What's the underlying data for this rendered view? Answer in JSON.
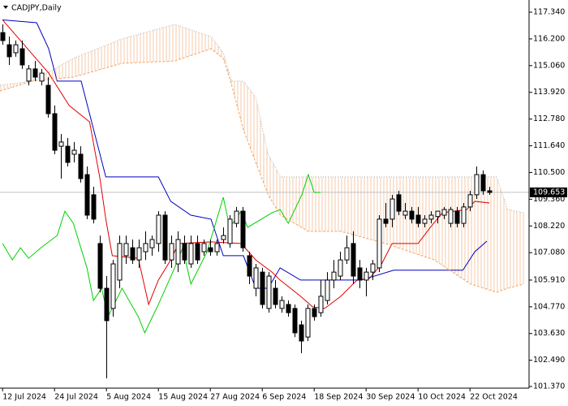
{
  "chart_data": {
    "type": "candlestick",
    "title": "CADJPY,Daily",
    "xlim": [
      -0.4,
      81.1
    ],
    "ylim": [
      101.3,
      117.86
    ],
    "yticks": [
      {
        "value": 117.34,
        "label": "117.340"
      },
      {
        "value": 116.2,
        "label": "116.200"
      },
      {
        "value": 115.06,
        "label": "115.060"
      },
      {
        "value": 113.92,
        "label": "113.920"
      },
      {
        "value": 112.78,
        "label": "112.780"
      },
      {
        "value": 111.64,
        "label": "111.640"
      },
      {
        "value": 110.5,
        "label": "110.500"
      },
      {
        "value": 109.36,
        "label": "109.360"
      },
      {
        "value": 108.22,
        "label": "108.220"
      },
      {
        "value": 107.08,
        "label": "107.080"
      },
      {
        "value": 105.91,
        "label": "105.910"
      },
      {
        "value": 104.77,
        "label": "104.770"
      },
      {
        "value": 103.63,
        "label": "103.630"
      },
      {
        "value": 102.49,
        "label": "102.490"
      },
      {
        "value": 101.37,
        "label": "101.370"
      }
    ],
    "xticks": [
      {
        "value": 0,
        "label": "12 Jul 2024"
      },
      {
        "value": 8,
        "label": "24 Jul 2024"
      },
      {
        "value": 16,
        "label": "5 Aug 2024"
      },
      {
        "value": 24,
        "label": "15 Aug 2024"
      },
      {
        "value": 32,
        "label": "27 Aug 2024"
      },
      {
        "value": 40,
        "label": "6 Sep 2024"
      },
      {
        "value": 48,
        "label": "18 Sep 2024"
      },
      {
        "value": 56,
        "label": "30 Sep 2024"
      },
      {
        "value": 64,
        "label": "10 Oct 2024"
      },
      {
        "value": 72,
        "label": "22 Oct 2024"
      }
    ],
    "last_price": 109.653,
    "x": [
      0,
      1,
      2,
      3,
      4,
      5,
      6,
      7,
      8,
      9,
      10,
      11,
      12,
      13,
      14,
      15,
      16,
      17,
      18,
      19,
      20,
      21,
      22,
      23,
      24,
      25,
      26,
      27,
      28,
      29,
      30,
      31,
      32,
      33,
      34,
      35,
      36,
      37,
      38,
      39,
      40,
      41,
      42,
      43,
      44,
      45,
      46,
      47,
      48,
      49,
      50,
      51,
      52,
      53,
      54,
      55,
      56,
      57,
      58,
      59,
      60,
      61,
      62,
      63,
      64,
      65,
      66,
      67,
      68,
      69,
      70,
      71,
      72,
      73,
      74,
      75
    ],
    "open": [
      116.47,
      115.95,
      115.61,
      115.78,
      114.4,
      114.92,
      114.4,
      114.22,
      113.01,
      111.62,
      111.62,
      111.28,
      111.28,
      110.41,
      109.55,
      107.47,
      105.56,
      104.7,
      105.91,
      106.95,
      107.29,
      106.77,
      107.12,
      107.29,
      107.47,
      108.68,
      106.77,
      106.6,
      107.47,
      106.6,
      107.47,
      107.12,
      107.29,
      107.12,
      107.64,
      107.47,
      108.33,
      108.85,
      106.95,
      105.56,
      106.25,
      104.7,
      105.56,
      104.7,
      104.87,
      104.7,
      104.0,
      103.48,
      104.7,
      104.52,
      105.04,
      105.91,
      106.08,
      106.77,
      107.47,
      106.43,
      105.91,
      106.25,
      106.43,
      108.51,
      108.51,
      109.55,
      108.68,
      108.85,
      108.68,
      108.33,
      108.51,
      108.62,
      108.68,
      108.33,
      108.85,
      108.33,
      109.03,
      109.55,
      110.41,
      109.72
    ],
    "high": [
      116.82,
      116.3,
      116.13,
      116.13,
      115.09,
      115.26,
      114.92,
      114.57,
      113.36,
      112.14,
      111.97,
      111.8,
      111.62,
      110.76,
      109.89,
      107.81,
      106.08,
      106.77,
      107.81,
      107.81,
      107.64,
      107.64,
      107.99,
      107.81,
      108.85,
      108.85,
      107.81,
      107.99,
      107.81,
      107.81,
      107.81,
      107.64,
      107.64,
      107.64,
      108.16,
      108.68,
      109.03,
      109.03,
      107.12,
      106.6,
      106.43,
      106.25,
      105.91,
      105.22,
      105.04,
      104.87,
      104.18,
      104.87,
      104.87,
      105.91,
      106.25,
      106.77,
      107.12,
      107.81,
      107.99,
      106.77,
      106.43,
      106.77,
      108.68,
      109.2,
      109.55,
      109.72,
      109.2,
      109.03,
      109.03,
      108.68,
      108.85,
      108.85,
      109.03,
      109.03,
      109.03,
      109.2,
      109.72,
      110.76,
      110.59,
      109.89
    ],
    "low": [
      115.95,
      115.09,
      115.44,
      114.92,
      114.22,
      114.4,
      114.22,
      112.84,
      111.28,
      110.24,
      110.76,
      110.93,
      110.07,
      108.51,
      108.33,
      105.39,
      101.72,
      104.35,
      105.56,
      106.6,
      106.6,
      106.43,
      106.77,
      106.95,
      107.12,
      106.6,
      106.43,
      106.25,
      106.6,
      106.43,
      106.6,
      106.95,
      106.95,
      106.95,
      107.47,
      107.29,
      108.16,
      107.12,
      105.74,
      105.22,
      104.7,
      104.52,
      104.7,
      104.52,
      104.35,
      103.48,
      102.79,
      103.31,
      104.18,
      104.35,
      104.87,
      105.56,
      105.91,
      106.6,
      105.74,
      105.56,
      105.22,
      105.91,
      106.25,
      108.16,
      108.16,
      108.68,
      108.51,
      108.33,
      108.16,
      108.16,
      108.33,
      108.33,
      108.51,
      108.16,
      108.16,
      108.16,
      108.85,
      109.37,
      109.55,
      109.55
    ],
    "close": [
      116.13,
      115.44,
      115.95,
      115.09,
      114.92,
      114.57,
      114.74,
      113.01,
      111.45,
      111.8,
      110.93,
      111.45,
      110.24,
      108.68,
      108.51,
      105.56,
      104.18,
      106.6,
      107.47,
      107.47,
      106.77,
      107.29,
      107.47,
      107.64,
      108.68,
      106.77,
      107.47,
      107.64,
      106.77,
      107.47,
      106.77,
      107.47,
      107.12,
      107.47,
      107.81,
      108.51,
      108.85,
      107.29,
      106.08,
      106.43,
      104.87,
      106.08,
      104.87,
      105.04,
      104.52,
      103.66,
      103.31,
      104.7,
      104.35,
      105.22,
      105.91,
      106.25,
      106.77,
      107.29,
      106.08,
      105.91,
      106.25,
      106.6,
      108.51,
      108.33,
      109.37,
      108.85,
      108.85,
      108.51,
      108.33,
      108.51,
      108.68,
      108.85,
      108.92,
      108.92,
      108.33,
      109.03,
      109.55,
      110.41,
      109.72,
      109.65
    ],
    "overlays": [
      {
        "color": "#e00000",
        "style": "solid",
        "x": [
          0,
          7.1,
          10.25,
          13.4,
          15,
          15.9,
          16.9,
          20.9,
          22.5,
          24,
          25.9,
          27.1,
          32.1,
          36.75,
          39,
          41.5,
          42.75,
          45.9,
          47.75,
          49.6,
          52.1,
          54.6,
          56.5,
          58.4,
          60,
          64,
          65.9,
          67.75,
          71.5,
          72.75,
          75
        ],
        "values": [
          117.01,
          114.74,
          113.36,
          112.66,
          110.24,
          108.51,
          106.95,
          106.84,
          104.87,
          105.91,
          106.77,
          107.47,
          107.54,
          107.47,
          106.77,
          106.25,
          105.91,
          105.22,
          104.77,
          104.7,
          105.22,
          105.91,
          105.98,
          106.6,
          107.47,
          107.47,
          108.16,
          108.78,
          108.92,
          109.27,
          109.2
        ]
      },
      {
        "color": "#0000c0",
        "style": "solid",
        "x": [
          0,
          5.25,
          7.1,
          8.4,
          12.1,
          15.9,
          24,
          25.9,
          29,
          32.1,
          34,
          37.1,
          39,
          40.9,
          42.75,
          45.9,
          55.25,
          60.25,
          70.9,
          72.75,
          74.6
        ],
        "values": [
          117.01,
          116.89,
          115.78,
          114.4,
          114.4,
          110.31,
          110.31,
          109.27,
          108.68,
          108.51,
          106.95,
          106.95,
          105.56,
          105.56,
          106.43,
          105.91,
          105.91,
          106.33,
          106.33,
          107.12,
          107.57
        ]
      },
      {
        "color": "#00d000",
        "style": "solid",
        "x": [
          0,
          1.5,
          2.75,
          4,
          5.9,
          8.4,
          9.6,
          10.9,
          13,
          14,
          15.25,
          16.25,
          18.4,
          20.9,
          21.9,
          24,
          26.5,
          27.75,
          29,
          31.5,
          34,
          35,
          36.75,
          37.75,
          41.5,
          42.75,
          44,
          46.1,
          47.1,
          48,
          49
        ],
        "values": [
          107.47,
          106.77,
          107.29,
          106.84,
          107.29,
          107.81,
          108.85,
          108.33,
          106.43,
          105.04,
          105.56,
          104.35,
          105.56,
          104.35,
          103.66,
          104.87,
          106.43,
          107.29,
          105.74,
          107.12,
          109.44,
          108.16,
          108.85,
          108.16,
          108.78,
          108.92,
          108.33,
          109.55,
          110.41,
          109.65,
          109.65
        ]
      },
      {
        "color": "#f4a460",
        "style": "dashed",
        "x": [
          -0.4,
          4.6,
          10.9,
          18.4,
          26.5,
          32.1,
          34,
          35.3,
          37.1,
          39,
          40.9,
          42.8,
          47.1,
          52.1,
          59,
          66.5,
          72.1,
          76.1,
          77.8,
          80.3
        ],
        "values": [
          113.98,
          114.4,
          114.57,
          115.16,
          115.26,
          115.78,
          115.37,
          114.22,
          112.32,
          110.93,
          109.55,
          108.68,
          107.99,
          107.99,
          107.47,
          106.77,
          105.74,
          105.39,
          105.56,
          105.74
        ]
      },
      {
        "color": "#b0b0b0",
        "style": "dotted",
        "x": [
          -0.4,
          4.6,
          10.9,
          18.4,
          26.5,
          32.1,
          34,
          35.3,
          37.1,
          39,
          40.9,
          42.8,
          47.1,
          52.1,
          59,
          66.5,
          72.1,
          76.1,
          77.8,
          80.3
        ],
        "values": [
          114.22,
          114.4,
          115.37,
          116.2,
          116.82,
          116.3,
          115.61,
          114.4,
          114.4,
          113.7,
          111.28,
          110.31,
          110.31,
          110.31,
          110.31,
          110.31,
          110.31,
          110.31,
          108.92,
          108.78
        ]
      }
    ]
  }
}
